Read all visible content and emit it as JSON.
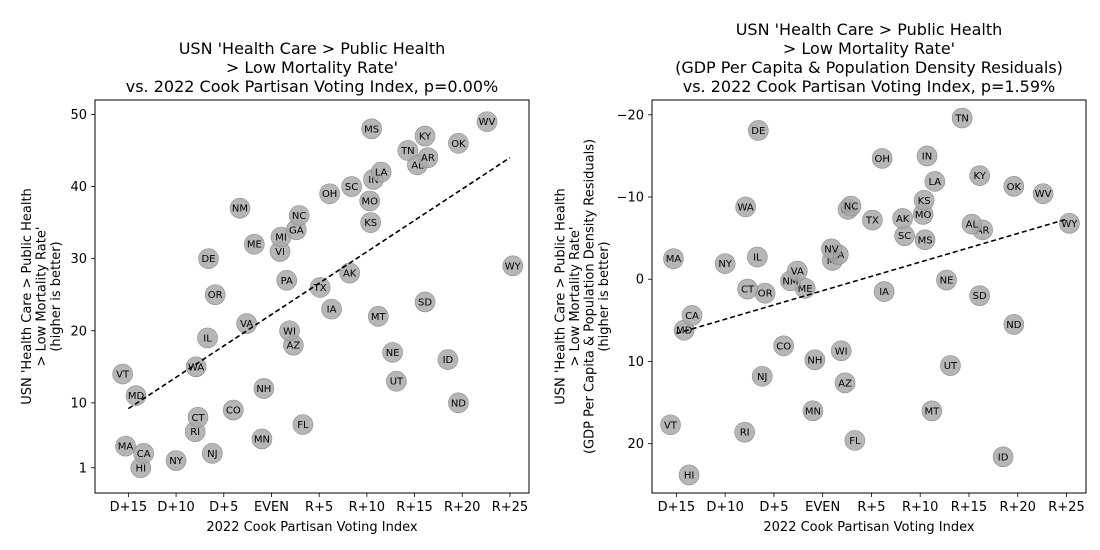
{
  "chart_data": [
    {
      "type": "scatter",
      "title": "USN 'Health Care > Public Health\n> Low Mortality Rate'\nvs. 2022 Cook Partisan Voting Index, p=0.00%",
      "xlabel": "2022 Cook Partisan Voting Index",
      "ylabel": "USN 'Health Care > Public Health\n> Low Mortality Rate'\n(higher is better)",
      "xlim": [
        -18.5,
        27
      ],
      "ylim": [
        52,
        -2.5
      ],
      "x_ticks": [
        -15,
        -10,
        -5,
        0,
        5,
        10,
        15,
        20,
        25
      ],
      "x_tick_labels": [
        "D+15",
        "D+10",
        "D+5",
        "EVEN",
        "R+5",
        "R+10",
        "R+15",
        "R+20",
        "R+25"
      ],
      "y_ticks": [
        1,
        10,
        20,
        30,
        40,
        50
      ],
      "y_tick_labels": [
        "1",
        "10",
        "20",
        "30",
        "40",
        "50"
      ],
      "trend_line": {
        "x": [
          -15,
          25
        ],
        "y": [
          9.2,
          44
        ]
      },
      "points": [
        {
          "label": "HI",
          "x": -13.7,
          "y": 1
        },
        {
          "label": "NY",
          "x": -10,
          "y": 2
        },
        {
          "label": "CA",
          "x": -13.4,
          "y": 3
        },
        {
          "label": "NJ",
          "x": -6.2,
          "y": 3
        },
        {
          "label": "MA",
          "x": -15.3,
          "y": 4
        },
        {
          "label": "MN",
          "x": -1,
          "y": 5
        },
        {
          "label": "RI",
          "x": -8,
          "y": 6
        },
        {
          "label": "FL",
          "x": 3.3,
          "y": 7
        },
        {
          "label": "CT",
          "x": -7.7,
          "y": 8
        },
        {
          "label": "CO",
          "x": -4,
          "y": 9
        },
        {
          "label": "ND",
          "x": 19.6,
          "y": 10
        },
        {
          "label": "MD",
          "x": -14.2,
          "y": 11
        },
        {
          "label": "NH",
          "x": -0.8,
          "y": 12
        },
        {
          "label": "UT",
          "x": 13.1,
          "y": 13
        },
        {
          "label": "VT",
          "x": -15.6,
          "y": 14
        },
        {
          "label": "WA",
          "x": -7.9,
          "y": 15
        },
        {
          "label": "ID",
          "x": 18.5,
          "y": 16
        },
        {
          "label": "NE",
          "x": 12.7,
          "y": 17
        },
        {
          "label": "AZ",
          "x": 2.3,
          "y": 18
        },
        {
          "label": "IL",
          "x": -6.7,
          "y": 19
        },
        {
          "label": "WI",
          "x": 1.9,
          "y": 20
        },
        {
          "label": "VA",
          "x": -2.6,
          "y": 21
        },
        {
          "label": "MT",
          "x": 11.2,
          "y": 22
        },
        {
          "label": "IA",
          "x": 6.3,
          "y": 23
        },
        {
          "label": "SD",
          "x": 16.1,
          "y": 24
        },
        {
          "label": "OR",
          "x": -5.9,
          "y": 25
        },
        {
          "label": "TX",
          "x": 5.1,
          "y": 26
        },
        {
          "label": "PA",
          "x": 1.6,
          "y": 27
        },
        {
          "label": "AK",
          "x": 8.2,
          "y": 28
        },
        {
          "label": "WY",
          "x": 25.3,
          "y": 29
        },
        {
          "label": "DE",
          "x": -6.6,
          "y": 30
        },
        {
          "label": "VI",
          "x": 0.9,
          "y": 31
        },
        {
          "label": "ME",
          "x": -1.8,
          "y": 32
        },
        {
          "label": "MI",
          "x": 1,
          "y": 33
        },
        {
          "label": "GA",
          "x": 2.6,
          "y": 34
        },
        {
          "label": "KS",
          "x": 10.4,
          "y": 35
        },
        {
          "label": "NC",
          "x": 2.9,
          "y": 36
        },
        {
          "label": "NM",
          "x": -3.3,
          "y": 37
        },
        {
          "label": "MO",
          "x": 10.3,
          "y": 38
        },
        {
          "label": "OH",
          "x": 6.1,
          "y": 39
        },
        {
          "label": "SC",
          "x": 8.4,
          "y": 40
        },
        {
          "label": "IN",
          "x": 10.7,
          "y": 41
        },
        {
          "label": "LA",
          "x": 11.5,
          "y": 42
        },
        {
          "label": "AL",
          "x": 15.3,
          "y": 43
        },
        {
          "label": "AR",
          "x": 16.4,
          "y": 44
        },
        {
          "label": "TN",
          "x": 14.3,
          "y": 45
        },
        {
          "label": "OK",
          "x": 19.6,
          "y": 46
        },
        {
          "label": "KY",
          "x": 16.1,
          "y": 47
        },
        {
          "label": "MS",
          "x": 10.5,
          "y": 48
        },
        {
          "label": "WV",
          "x": 22.6,
          "y": 49
        }
      ]
    },
    {
      "type": "scatter",
      "title": "USN 'Health Care > Public Health\n> Low Mortality Rate'\n(GDP Per Capita & Population Density Residuals)\nvs. 2022 Cook Partisan Voting Index, p=1.59%",
      "xlabel": "2022 Cook Partisan Voting Index",
      "ylabel": "USN 'Health Care > Public Health\n> Low Mortality Rate'\n(GDP Per Capita & Population Density Residuals)\n(higher is better)",
      "xlim": [
        -17.5,
        27
      ],
      "ylim": [
        -21.8,
        26
      ],
      "x_ticks": [
        -15,
        -10,
        -5,
        0,
        5,
        10,
        15,
        20,
        25
      ],
      "x_tick_labels": [
        "D+15",
        "D+10",
        "D+5",
        "EVEN",
        "R+5",
        "R+10",
        "R+15",
        "R+20",
        "R+25"
      ],
      "y_ticks": [
        -20,
        -10,
        0,
        10,
        20
      ],
      "y_tick_labels": [
        "−20",
        "−10",
        "0",
        "10",
        "20"
      ],
      "trend_line": {
        "x": [
          -15,
          25
        ],
        "y": [
          6.6,
          -7.3
        ]
      },
      "points": [
        {
          "label": "HI",
          "x": -13.7,
          "y": 23.8
        },
        {
          "label": "ID",
          "x": 18.5,
          "y": 21.6
        },
        {
          "label": "FL",
          "x": 3.3,
          "y": 19.6
        },
        {
          "label": "RI",
          "x": -8,
          "y": 18.6
        },
        {
          "label": "VT",
          "x": -15.6,
          "y": 17.7
        },
        {
          "label": "MN",
          "x": -1,
          "y": 16
        },
        {
          "label": "MT",
          "x": 11.2,
          "y": 16
        },
        {
          "label": "AZ",
          "x": 2.3,
          "y": 12.6
        },
        {
          "label": "NJ",
          "x": -6.2,
          "y": 11.8
        },
        {
          "label": "UT",
          "x": 13.1,
          "y": 10.5
        },
        {
          "label": "NH",
          "x": -0.8,
          "y": 9.8
        },
        {
          "label": "WI",
          "x": 1.9,
          "y": 8.7
        },
        {
          "label": "CO",
          "x": -4,
          "y": 8.1
        },
        {
          "label": "MD",
          "x": -14.2,
          "y": 6.2
        },
        {
          "label": "ND",
          "x": 19.6,
          "y": 5.5
        },
        {
          "label": "CA",
          "x": -13.4,
          "y": 4.4
        },
        {
          "label": "SD",
          "x": 16.1,
          "y": 2
        },
        {
          "label": "OR",
          "x": -5.9,
          "y": 1.7
        },
        {
          "label": "IA",
          "x": 6.3,
          "y": 1.5
        },
        {
          "label": "CT",
          "x": -7.7,
          "y": 1.2
        },
        {
          "label": "ME",
          "x": -1.8,
          "y": 1.1
        },
        {
          "label": "NM",
          "x": -3.3,
          "y": 0.2
        },
        {
          "label": "NE",
          "x": 12.7,
          "y": 0.1
        },
        {
          "label": "VA",
          "x": -2.6,
          "y": -1
        },
        {
          "label": "NY",
          "x": -10,
          "y": -1.9
        },
        {
          "label": "MI",
          "x": 1,
          "y": -2.3
        },
        {
          "label": "MA",
          "x": -15.3,
          "y": -2.5
        },
        {
          "label": "IL",
          "x": -6.7,
          "y": -2.7
        },
        {
          "label": "PA",
          "x": 1.6,
          "y": -3
        },
        {
          "label": "NV",
          "x": 0.9,
          "y": -3.7
        },
        {
          "label": "MS",
          "x": 10.5,
          "y": -4.8
        },
        {
          "label": "SC",
          "x": 8.4,
          "y": -5.3
        },
        {
          "label": "AR",
          "x": 16.4,
          "y": -6
        },
        {
          "label": "AL",
          "x": 15.3,
          "y": -6.7
        },
        {
          "label": "WY",
          "x": 25.3,
          "y": -6.8
        },
        {
          "label": "TX",
          "x": 5.1,
          "y": -7.2
        },
        {
          "label": "AK",
          "x": 8.2,
          "y": -7.4
        },
        {
          "label": "MO",
          "x": 10.3,
          "y": -7.9
        },
        {
          "label": "GA",
          "x": 2.6,
          "y": -8.5
        },
        {
          "label": "WA",
          "x": -7.9,
          "y": -8.8
        },
        {
          "label": "NC",
          "x": 2.9,
          "y": -8.9
        },
        {
          "label": "KS",
          "x": 10.4,
          "y": -9.6
        },
        {
          "label": "WV",
          "x": 22.6,
          "y": -10.4
        },
        {
          "label": "OK",
          "x": 19.6,
          "y": -11.3
        },
        {
          "label": "LA",
          "x": 11.5,
          "y": -11.9
        },
        {
          "label": "KY",
          "x": 16.1,
          "y": -12.6
        },
        {
          "label": "OH",
          "x": 6.1,
          "y": -14.7
        },
        {
          "label": "IN",
          "x": 10.7,
          "y": -15
        },
        {
          "label": "DE",
          "x": -6.6,
          "y": -18.1
        },
        {
          "label": "TN",
          "x": 14.3,
          "y": -19.6
        }
      ]
    }
  ]
}
